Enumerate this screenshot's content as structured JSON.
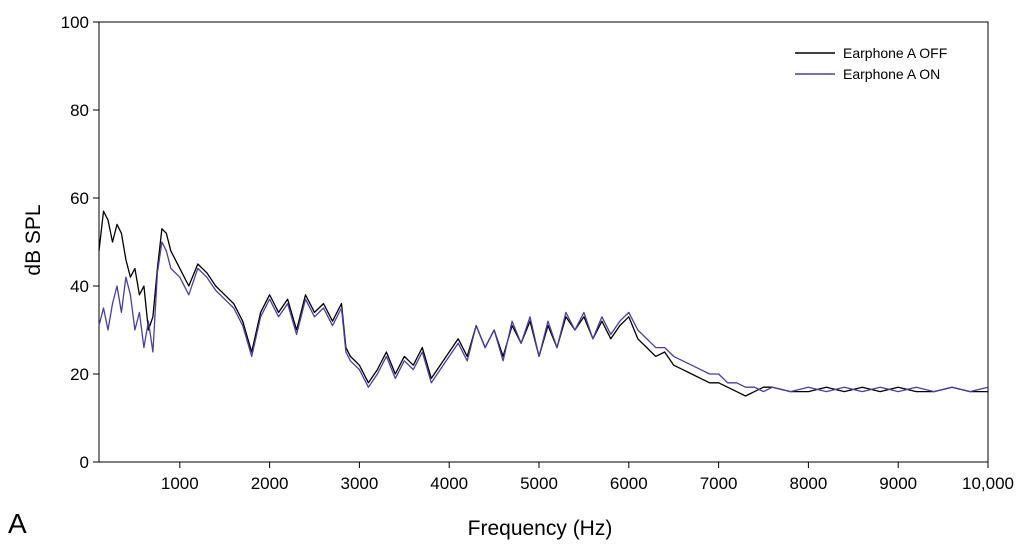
{
  "panel_label": "A",
  "chart_data": {
    "type": "line",
    "title": "",
    "xlabel": "Frequency (Hz)",
    "ylabel": "dB SPL",
    "xlim": [
      100,
      10000
    ],
    "ylim": [
      0,
      100
    ],
    "x_ticks": [
      1000,
      2000,
      3000,
      4000,
      5000,
      6000,
      7000,
      8000,
      9000,
      10000
    ],
    "x_tick_labels": [
      "1000",
      "2000",
      "3000",
      "4000",
      "5000",
      "6000",
      "7000",
      "8000",
      "9000",
      "10,000"
    ],
    "y_ticks": [
      0,
      20,
      40,
      60,
      80,
      100
    ],
    "y_tick_labels": [
      "0",
      "20",
      "40",
      "60",
      "80",
      "100"
    ],
    "grid": false,
    "legend_position": "top-right",
    "series": [
      {
        "name": "Earphone A OFF",
        "color": "#000000",
        "x": [
          100,
          150,
          200,
          250,
          300,
          350,
          400,
          450,
          500,
          550,
          600,
          650,
          700,
          750,
          800,
          850,
          900,
          1000,
          1100,
          1200,
          1300,
          1400,
          1500,
          1600,
          1700,
          1800,
          1900,
          2000,
          2100,
          2200,
          2300,
          2400,
          2500,
          2600,
          2700,
          2800,
          2850,
          2900,
          3000,
          3100,
          3200,
          3300,
          3400,
          3500,
          3600,
          3700,
          3800,
          3900,
          4000,
          4100,
          4200,
          4300,
          4400,
          4500,
          4600,
          4700,
          4800,
          4900,
          5000,
          5100,
          5200,
          5300,
          5400,
          5500,
          5600,
          5700,
          5800,
          5900,
          6000,
          6100,
          6200,
          6300,
          6400,
          6500,
          6600,
          6700,
          6800,
          6900,
          7000,
          7100,
          7200,
          7300,
          7400,
          7500,
          7600,
          7800,
          8000,
          8200,
          8400,
          8600,
          8800,
          9000,
          9200,
          9400,
          9600,
          9800,
          10000
        ],
        "y": [
          48,
          57,
          55,
          50,
          54,
          52,
          46,
          42,
          44,
          38,
          40,
          30,
          33,
          44,
          53,
          52,
          48,
          44,
          40,
          45,
          43,
          40,
          38,
          36,
          32,
          25,
          34,
          38,
          34,
          37,
          30,
          38,
          34,
          36,
          32,
          36,
          26,
          24,
          22,
          18,
          21,
          25,
          20,
          24,
          22,
          26,
          19,
          22,
          25,
          28,
          24,
          31,
          26,
          30,
          24,
          31,
          27,
          32,
          24,
          31,
          26,
          33,
          30,
          33,
          28,
          32,
          28,
          31,
          33,
          28,
          26,
          24,
          25,
          22,
          21,
          20,
          19,
          18,
          18,
          17,
          16,
          15,
          16,
          17,
          17,
          16,
          16,
          17,
          16,
          17,
          16,
          17,
          16,
          16,
          17,
          16,
          16
        ]
      },
      {
        "name": "Earphone A ON",
        "color": "#4a3fa0",
        "x": [
          100,
          150,
          200,
          250,
          300,
          350,
          400,
          450,
          500,
          550,
          600,
          650,
          700,
          750,
          800,
          850,
          900,
          1000,
          1100,
          1200,
          1300,
          1400,
          1500,
          1600,
          1700,
          1800,
          1900,
          2000,
          2100,
          2200,
          2300,
          2400,
          2500,
          2600,
          2700,
          2800,
          2850,
          2900,
          3000,
          3100,
          3200,
          3300,
          3400,
          3500,
          3600,
          3700,
          3800,
          3900,
          4000,
          4100,
          4200,
          4300,
          4400,
          4500,
          4600,
          4700,
          4800,
          4900,
          5000,
          5100,
          5200,
          5300,
          5400,
          5500,
          5600,
          5700,
          5800,
          5900,
          6000,
          6100,
          6200,
          6300,
          6400,
          6500,
          6600,
          6700,
          6800,
          6900,
          7000,
          7100,
          7200,
          7300,
          7400,
          7500,
          7600,
          7800,
          8000,
          8200,
          8400,
          8600,
          8800,
          9000,
          9200,
          9400,
          9600,
          9800,
          10000
        ],
        "y": [
          31,
          35,
          30,
          36,
          40,
          34,
          42,
          38,
          30,
          34,
          26,
          32,
          25,
          43,
          50,
          48,
          44,
          42,
          38,
          44,
          42,
          39,
          37,
          35,
          31,
          24,
          33,
          37,
          33,
          36,
          29,
          37,
          33,
          35,
          31,
          35,
          25,
          23,
          21,
          17,
          20,
          24,
          19,
          23,
          21,
          25,
          18,
          21,
          24,
          27,
          23,
          31,
          26,
          30,
          23,
          32,
          27,
          33,
          24,
          32,
          26,
          34,
          30,
          34,
          28,
          33,
          29,
          32,
          34,
          30,
          28,
          26,
          26,
          24,
          23,
          22,
          21,
          20,
          20,
          18,
          18,
          17,
          17,
          16,
          17,
          16,
          17,
          16,
          17,
          16,
          17,
          16,
          17,
          16,
          17,
          16,
          17
        ]
      }
    ]
  }
}
